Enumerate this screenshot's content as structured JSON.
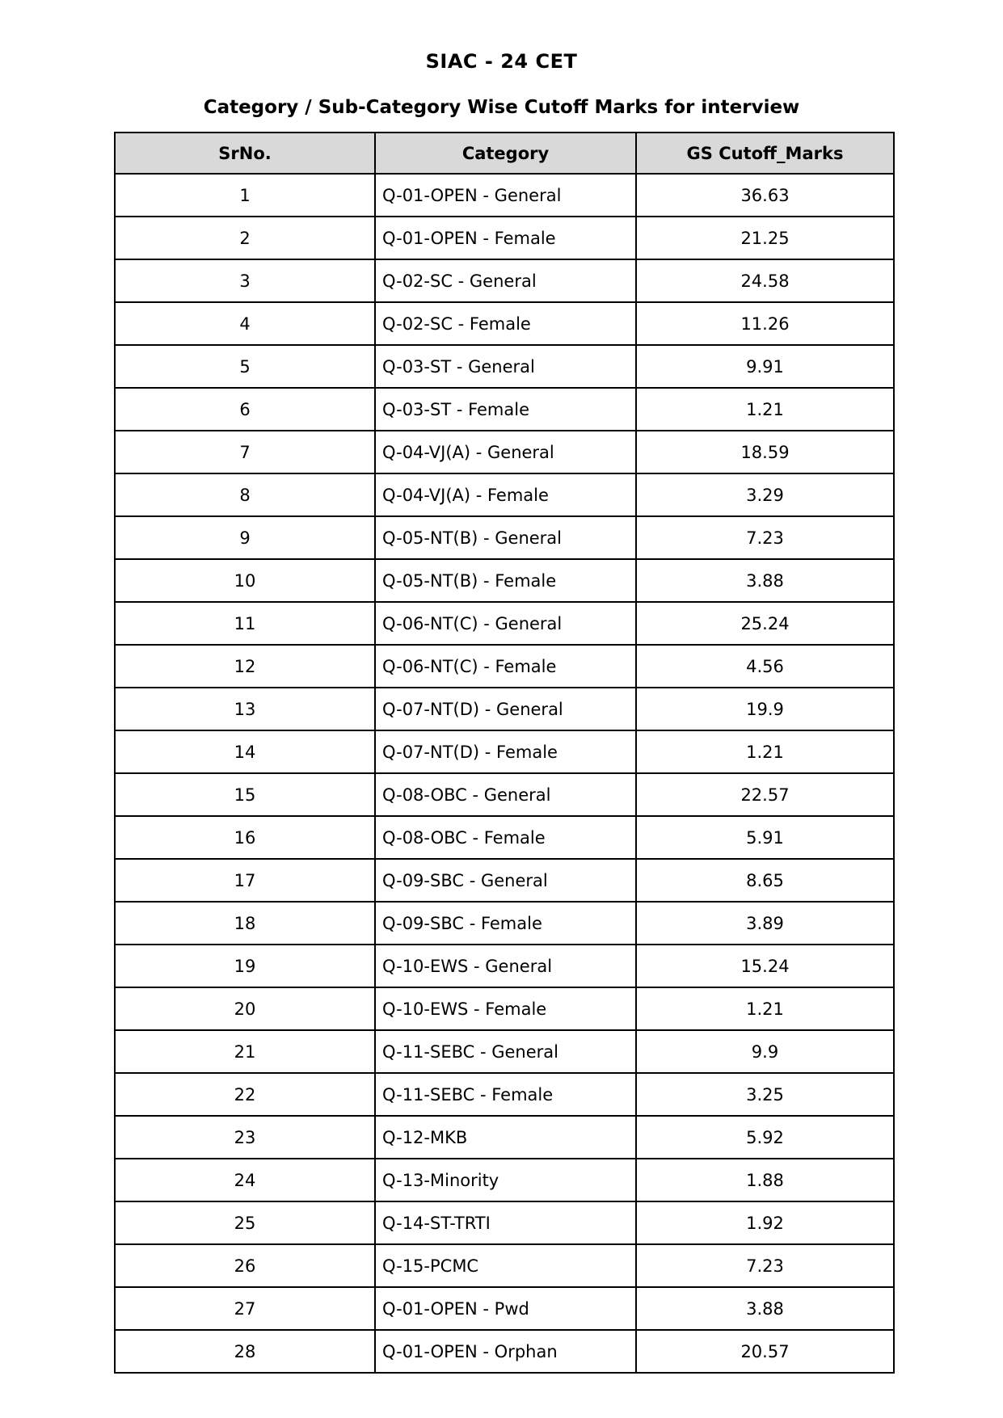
{
  "page": {
    "title": "SIAC - 24 CET",
    "subtitle": "Category / Sub-Category Wise Cutoff Marks for interview"
  },
  "colors": {
    "page_bg": "#ffffff",
    "header_bg": "#d9d9d9",
    "border": "#000000",
    "text": "#000000"
  },
  "table": {
    "columns": [
      "SrNo.",
      "Category",
      "GS Cutoff_Marks"
    ],
    "rows": [
      {
        "sr": "1",
        "category": "Q-01-OPEN - General",
        "marks": "36.63"
      },
      {
        "sr": "2",
        "category": "Q-01-OPEN - Female",
        "marks": "21.25"
      },
      {
        "sr": "3",
        "category": "Q-02-SC - General",
        "marks": "24.58"
      },
      {
        "sr": "4",
        "category": "Q-02-SC - Female",
        "marks": "11.26"
      },
      {
        "sr": "5",
        "category": "Q-03-ST - General",
        "marks": "9.91"
      },
      {
        "sr": "6",
        "category": "Q-03-ST - Female",
        "marks": "1.21"
      },
      {
        "sr": "7",
        "category": "Q-04-VJ(A) - General",
        "marks": "18.59"
      },
      {
        "sr": "8",
        "category": "Q-04-VJ(A) - Female",
        "marks": "3.29"
      },
      {
        "sr": "9",
        "category": "Q-05-NT(B) - General",
        "marks": "7.23"
      },
      {
        "sr": "10",
        "category": "Q-05-NT(B) - Female",
        "marks": "3.88"
      },
      {
        "sr": "11",
        "category": "Q-06-NT(C) - General",
        "marks": "25.24"
      },
      {
        "sr": "12",
        "category": "Q-06-NT(C) - Female",
        "marks": "4.56"
      },
      {
        "sr": "13",
        "category": "Q-07-NT(D) - General",
        "marks": "19.9"
      },
      {
        "sr": "14",
        "category": "Q-07-NT(D) - Female",
        "marks": "1.21"
      },
      {
        "sr": "15",
        "category": "Q-08-OBC - General",
        "marks": "22.57"
      },
      {
        "sr": "16",
        "category": "Q-08-OBC - Female",
        "marks": "5.91"
      },
      {
        "sr": "17",
        "category": "Q-09-SBC - General",
        "marks": "8.65"
      },
      {
        "sr": "18",
        "category": "Q-09-SBC - Female",
        "marks": "3.89"
      },
      {
        "sr": "19",
        "category": "Q-10-EWS - General",
        "marks": "15.24"
      },
      {
        "sr": "20",
        "category": "Q-10-EWS - Female",
        "marks": "1.21"
      },
      {
        "sr": "21",
        "category": "Q-11-SEBC - General",
        "marks": "9.9"
      },
      {
        "sr": "22",
        "category": "Q-11-SEBC - Female",
        "marks": "3.25"
      },
      {
        "sr": "23",
        "category": "Q-12-MKB",
        "marks": "5.92"
      },
      {
        "sr": "24",
        "category": "Q-13-Minority",
        "marks": "1.88"
      },
      {
        "sr": "25",
        "category": "Q-14-ST-TRTI",
        "marks": "1.92"
      },
      {
        "sr": "26",
        "category": "Q-15-PCMC",
        "marks": "7.23"
      },
      {
        "sr": "27",
        "category": "Q-01-OPEN - Pwd",
        "marks": "3.88"
      },
      {
        "sr": "28",
        "category": "Q-01-OPEN - Orphan",
        "marks": "20.57"
      }
    ]
  }
}
